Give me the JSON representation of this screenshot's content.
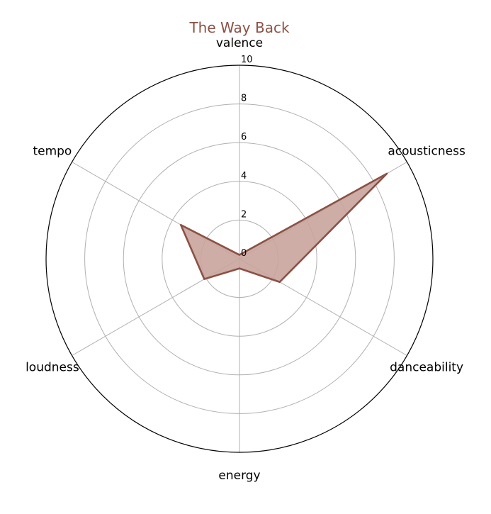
{
  "chart_data": {
    "type": "radar",
    "title": "The Way Back",
    "axes": [
      "valence",
      "acousticness",
      "danceability",
      "energy",
      "loudness",
      "tempo"
    ],
    "series": [
      {
        "values": [
          0.2,
          8.8,
          2.4,
          0.5,
          2.1,
          3.5
        ]
      }
    ],
    "rlim": [
      0,
      10
    ],
    "rticks": [
      "0",
      "2",
      "4",
      "6",
      "8",
      "10"
    ],
    "grid": true,
    "colors": {
      "series_line": "#8b5145",
      "series_fill": "#c9a49c",
      "title": "#8b5145",
      "grid": "#b0b0b0",
      "outer_ring": "#000000"
    }
  }
}
